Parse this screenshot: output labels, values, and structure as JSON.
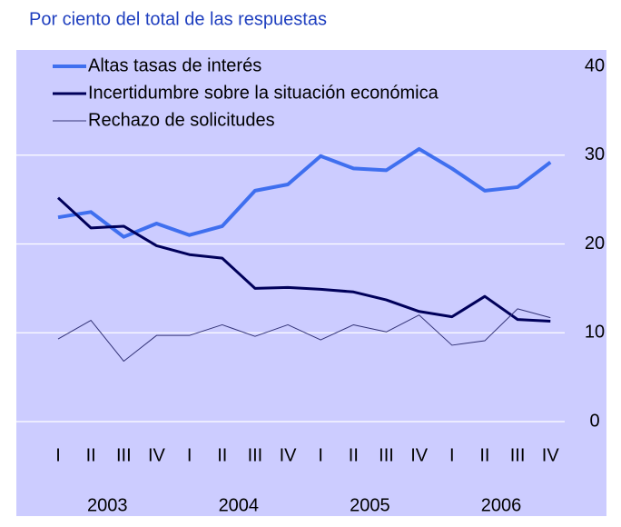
{
  "chart_data": {
    "type": "line",
    "title": "Por ciento del total de las respuestas",
    "categories": [
      "I",
      "II",
      "III",
      "IV",
      "I",
      "II",
      "III",
      "IV",
      "I",
      "II",
      "III",
      "IV",
      "I",
      "II",
      "III",
      "IV"
    ],
    "years": [
      "2003",
      "2004",
      "2005",
      "2006"
    ],
    "series": [
      {
        "name": "Altas tasas de interés",
        "color": "#3f6fef",
        "width": 4,
        "values": [
          23,
          23.6,
          20.8,
          22.3,
          21,
          22,
          26,
          26.7,
          29.9,
          28.5,
          28.3,
          30.7,
          28.5,
          26,
          26.4,
          29.2
        ]
      },
      {
        "name": "Incertidumbre sobre la situación económica",
        "color": "#00005a",
        "width": 3,
        "values": [
          25.2,
          21.8,
          22,
          19.8,
          18.8,
          18.4,
          15,
          15.1,
          14.9,
          14.6,
          13.7,
          12.4,
          11.8,
          14.1,
          11.5,
          11.3
        ]
      },
      {
        "name": "Rechazo de solicitudes",
        "color": "#333377",
        "width": 1,
        "values": [
          9.3,
          11.4,
          6.8,
          9.7,
          9.7,
          10.9,
          9.6,
          10.9,
          9.2,
          10.9,
          10.1,
          12,
          8.6,
          9.1,
          12.7,
          11.7
        ]
      }
    ],
    "ylim": [
      0,
      40
    ],
    "yticks": [
      0,
      10,
      20,
      30,
      40
    ],
    "grid": true
  }
}
